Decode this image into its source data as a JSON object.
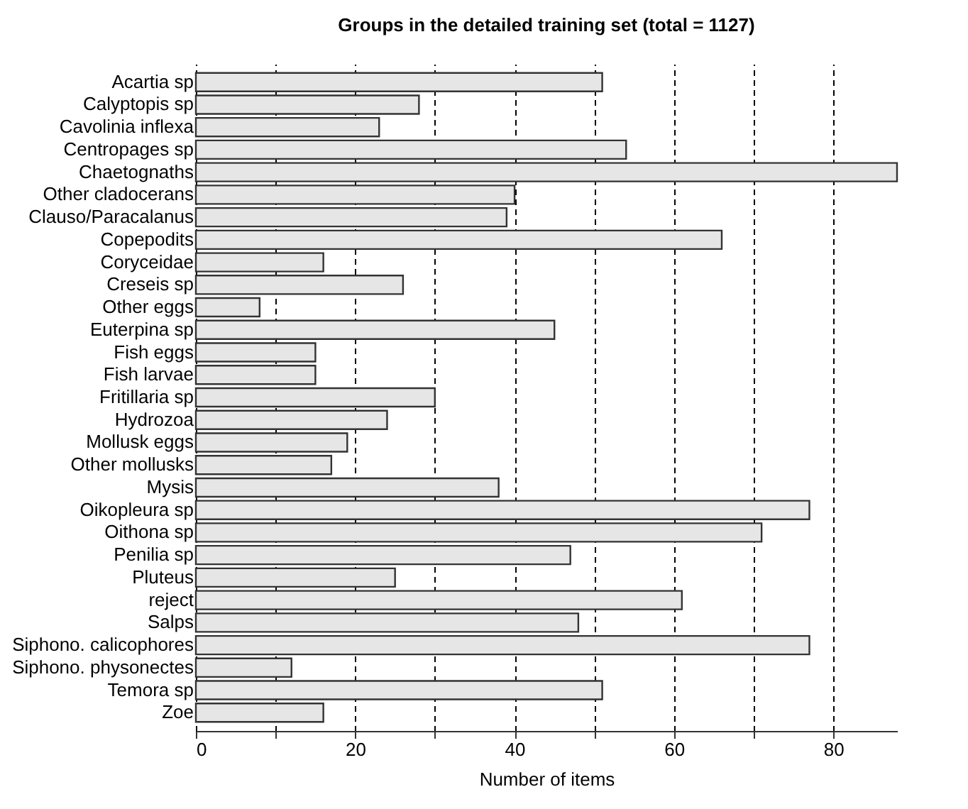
{
  "chart_data": {
    "type": "bar",
    "orientation": "horizontal",
    "title": "Groups in the detailed training set (total = 1127)",
    "xlabel": "Number of items",
    "categories": [
      "Acartia sp",
      "Calyptopis sp",
      "Cavolinia inflexa",
      "Centropages sp",
      "Chaetognaths",
      "Other cladocerans",
      "Clauso/Paracalanus",
      "Copepodits",
      "Coryceidae",
      "Creseis sp",
      "Other eggs",
      "Euterpina sp",
      "Fish eggs",
      "Fish larvae",
      "Fritillaria sp",
      "Hydrozoa",
      "Mollusk eggs",
      "Other mollusks",
      "Mysis",
      "Oikopleura sp",
      "Oithona sp",
      "Penilia sp",
      "Pluteus",
      "reject",
      "Salps",
      "Siphono. calicophores",
      "Siphono. physonectes",
      "Temora sp",
      "Zoe"
    ],
    "values": [
      51,
      28,
      23,
      54,
      88,
      40,
      39,
      66,
      16,
      26,
      8,
      45,
      15,
      15,
      30,
      24,
      19,
      17,
      38,
      77,
      71,
      47,
      25,
      61,
      48,
      77,
      12,
      51,
      16
    ],
    "color": "#e6e6e6",
    "xlim": [
      0,
      88
    ],
    "xticks": [
      0,
      {
        "value": 10,
        "label": null
      },
      20,
      {
        "value": 30,
        "label": null
      },
      40,
      {
        "value": 50,
        "label": null
      },
      60,
      {
        "value": 70,
        "label": null
      },
      80
    ],
    "grid": "x"
  }
}
